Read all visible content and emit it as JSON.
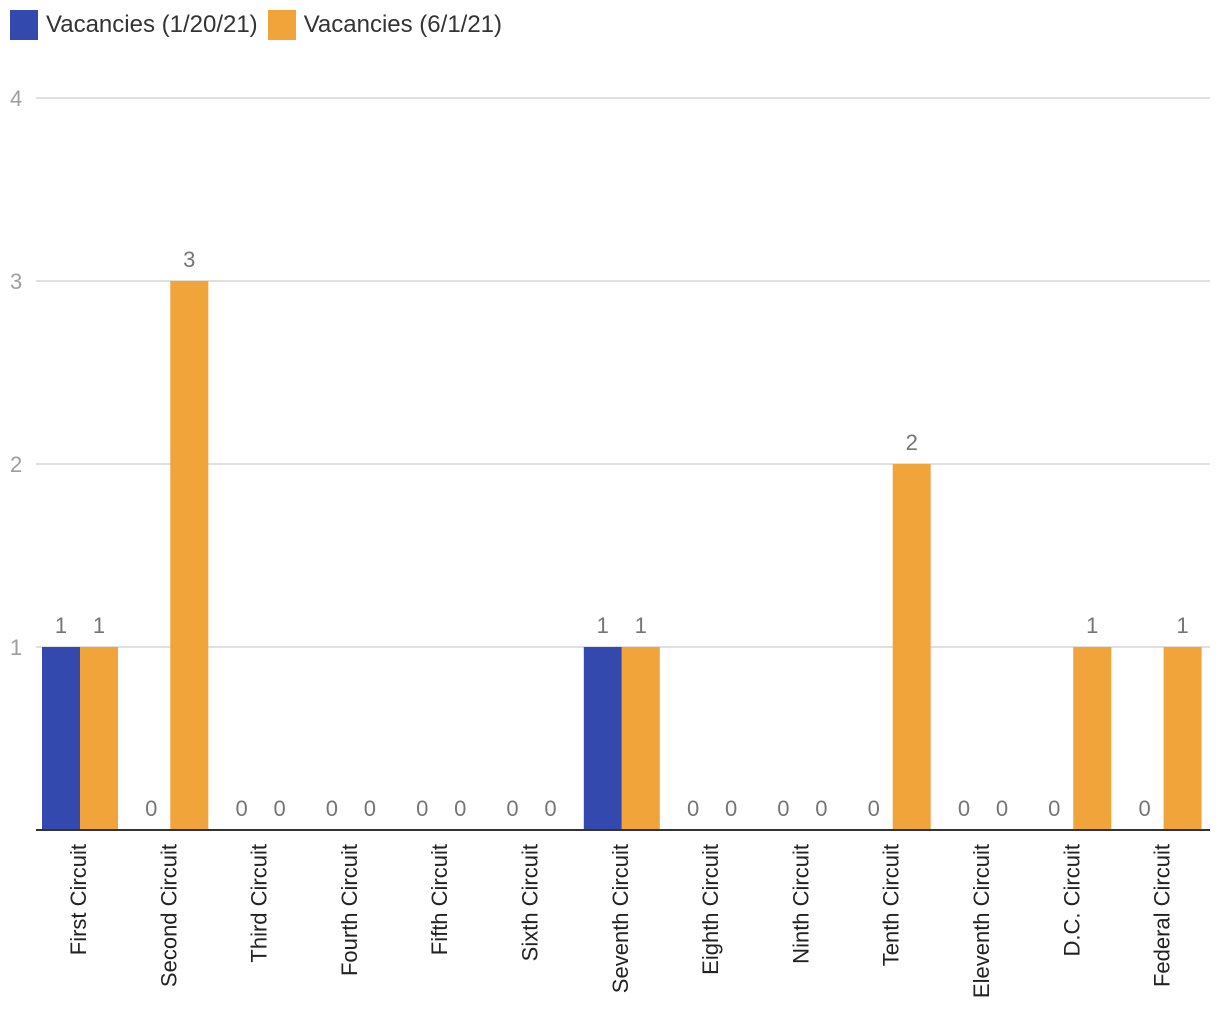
{
  "legend": {
    "items": [
      {
        "label": "Vacancies (1/20/21)",
        "color": "#3349ad"
      },
      {
        "label": "Vacancies (6/1/21)",
        "color": "#f0a439"
      }
    ]
  },
  "chart_data": {
    "type": "bar",
    "title": "",
    "xlabel": "",
    "ylabel": "",
    "ylim": [
      0,
      4
    ],
    "yticks": [
      1,
      2,
      3,
      4
    ],
    "grid": true,
    "legend_position": "top-left",
    "categories": [
      "First Circuit",
      "Second Circuit",
      "Third Circuit",
      "Fourth Circuit",
      "Fifth Circuit",
      "Sixth Circuit",
      "Seventh Circuit",
      "Eighth Circuit",
      "Ninth Circuit",
      "Tenth Circuit",
      "Eleventh Circuit",
      "D.C. Circuit",
      "Federal Circuit"
    ],
    "series": [
      {
        "name": "Vacancies (1/20/21)",
        "color": "#3349ad",
        "values": [
          1,
          0,
          0,
          0,
          0,
          0,
          1,
          0,
          0,
          0,
          0,
          0,
          0
        ]
      },
      {
        "name": "Vacancies (6/1/21)",
        "color": "#f0a439",
        "values": [
          1,
          3,
          0,
          0,
          0,
          0,
          1,
          0,
          0,
          2,
          0,
          1,
          1
        ]
      }
    ]
  }
}
